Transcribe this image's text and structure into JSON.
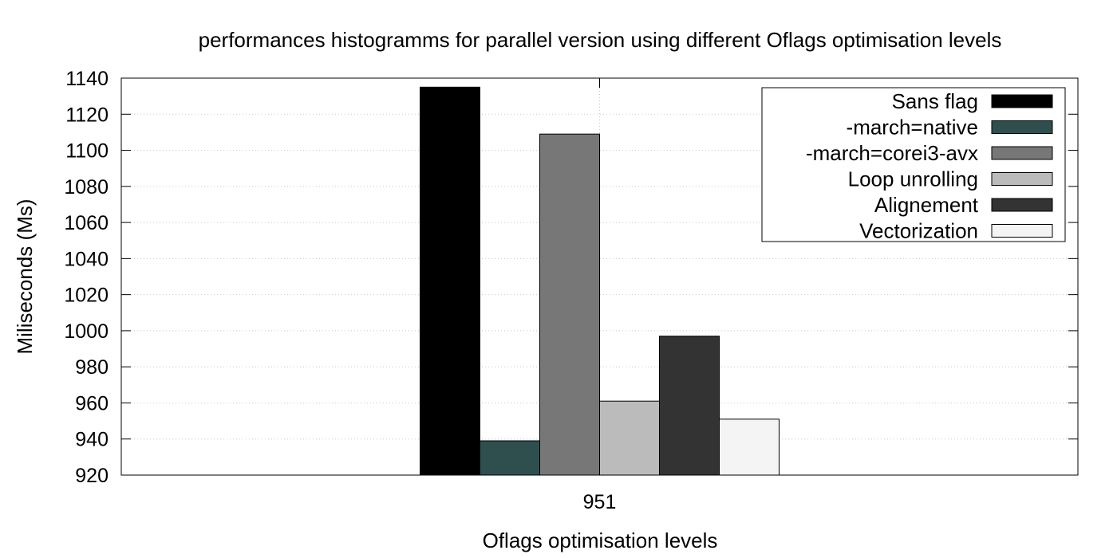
{
  "chart_data": {
    "type": "bar",
    "title": "performances histogramms for parallel version using different Oflags optimisation levels",
    "xlabel": "Oflags optimisation levels",
    "ylabel": "Miliseconds (Ms)",
    "categories": [
      "951"
    ],
    "ylim": [
      920,
      1140
    ],
    "yticks": [
      920,
      940,
      960,
      980,
      1000,
      1020,
      1040,
      1060,
      1080,
      1100,
      1120,
      1140
    ],
    "grid": true,
    "legend_position": "top-right",
    "series": [
      {
        "name": "Sans flag",
        "values": [
          1135
        ],
        "color": "#000000"
      },
      {
        "name": "-march=native",
        "values": [
          939
        ],
        "color": "#2f4f4f"
      },
      {
        "name": "-march=corei3-avx",
        "values": [
          1109
        ],
        "color": "#777777"
      },
      {
        "name": "Loop unrolling",
        "values": [
          961
        ],
        "color": "#bbbbbb"
      },
      {
        "name": "Alignement",
        "values": [
          997
        ],
        "color": "#333333"
      },
      {
        "name": "Vectorization",
        "values": [
          951
        ],
        "color": "#f4f4f4"
      }
    ]
  }
}
